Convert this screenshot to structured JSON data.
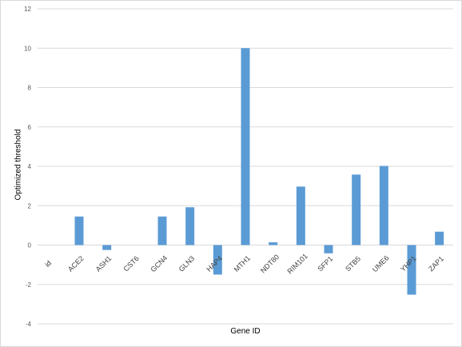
{
  "chart_data": {
    "type": "bar",
    "title": "",
    "xlabel": "Gene ID",
    "ylabel": "Optimized threshold",
    "categories": [
      "id",
      "ACE2",
      "ASH1",
      "CST6",
      "GCN4",
      "GLN3",
      "HAP4",
      "MTH1",
      "NDT80",
      "RIM101",
      "SFP1",
      "STB5",
      "UME6",
      "YHP1",
      "ZAP1"
    ],
    "values": [
      0,
      1.45,
      -0.25,
      0,
      1.45,
      1.92,
      -1.5,
      10.0,
      0.14,
      2.97,
      -0.42,
      3.58,
      4.02,
      -2.52,
      0.68
    ],
    "ylim": [
      -4,
      12
    ],
    "yticks": [
      -4,
      -2,
      0,
      2,
      4,
      6,
      8,
      10,
      12
    ],
    "grid": true,
    "legend": "none",
    "bar_color": "#5b9bd5"
  }
}
